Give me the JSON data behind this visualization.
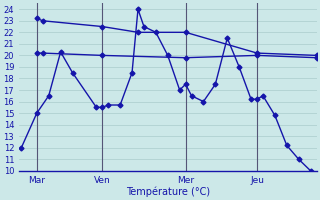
{
  "title": "Température (°C)",
  "background_color": "#cce8e8",
  "line_color": "#1515aa",
  "line_width": 1.0,
  "marker": "D",
  "marker_size": 2.5,
  "xlim": [
    0,
    25
  ],
  "ylim": [
    10,
    24.5
  ],
  "yticks": [
    10,
    11,
    12,
    13,
    14,
    15,
    16,
    17,
    18,
    19,
    20,
    21,
    22,
    23,
    24
  ],
  "xtick_positions": [
    1.5,
    7,
    14,
    20
  ],
  "xtick_labels": [
    "Mar",
    "Ven",
    "Mer",
    "Jeu"
  ],
  "vlines": [
    1.5,
    7,
    14,
    20
  ],
  "line1_x": [
    1.5,
    2,
    7,
    14,
    20,
    25
  ],
  "line1_y": [
    20.2,
    20.2,
    20.0,
    19.8,
    20.0,
    19.8
  ],
  "line2_x": [
    1.5,
    2,
    7,
    10,
    14,
    20,
    25
  ],
  "line2_y": [
    23.2,
    23.0,
    22.5,
    22.0,
    22.0,
    20.2,
    20.0
  ],
  "line3_x": [
    0.2,
    1.5,
    2.5,
    3.5,
    4.5,
    6.5,
    7.0,
    7.5,
    8.5,
    9.5,
    10.0,
    10.5,
    11.5,
    12.5,
    13.5,
    14.0,
    14.5,
    15.5,
    16.5,
    17.5,
    18.5,
    19.5,
    20.0,
    20.5,
    21.5,
    22.5,
    23.5,
    24.5
  ],
  "line3_y": [
    12.0,
    15.0,
    16.5,
    20.3,
    18.5,
    15.5,
    15.5,
    15.7,
    15.7,
    18.5,
    24.0,
    22.5,
    22.0,
    20.0,
    17.0,
    17.5,
    16.5,
    16.0,
    17.5,
    21.5,
    19.0,
    16.2,
    16.2,
    16.5,
    14.8,
    12.2,
    11.0,
    10.0
  ]
}
